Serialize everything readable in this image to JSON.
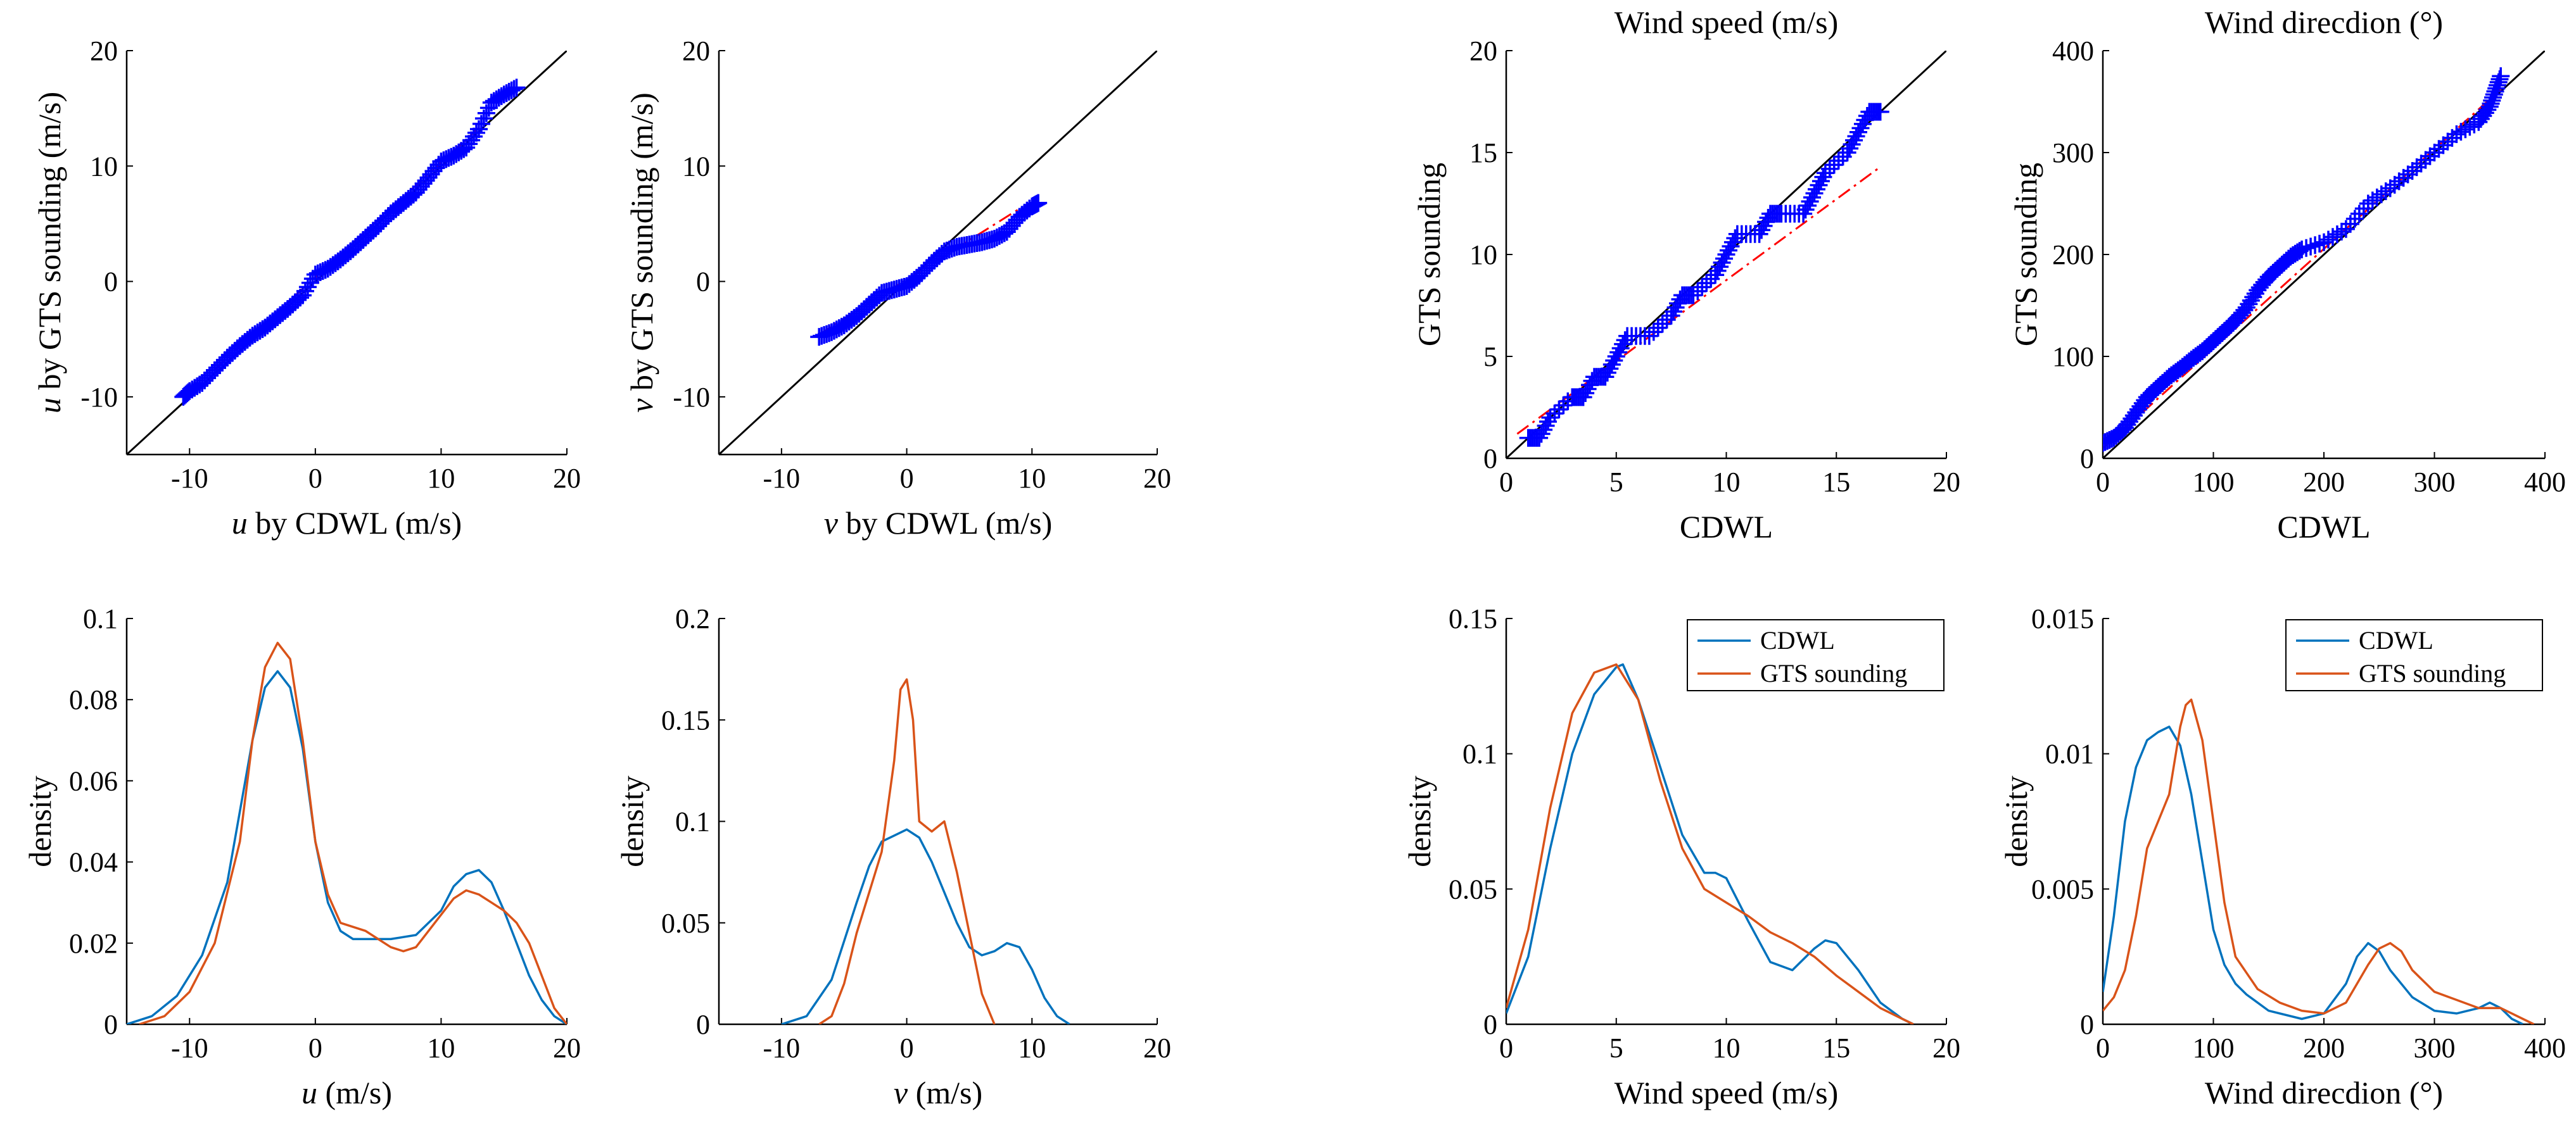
{
  "colors": {
    "cdwl": "#0072BD",
    "gts": "#D95319",
    "qq_marker": "#0000FF",
    "fit_line": "#FF0000",
    "identity_line": "#000000"
  },
  "chart_data": [
    {
      "id": "qq_u",
      "type": "scatter",
      "title": "",
      "xlabel_var": "u",
      "xlabel_rest": " by CDWL (m/s)",
      "ylabel_var": "u",
      "ylabel_rest": " by GTS sounding (m/s)",
      "xlim": [
        -15,
        20
      ],
      "ylim": [
        -15,
        20
      ],
      "xticks": [
        -10,
        0,
        10,
        20
      ],
      "yticks": [
        -10,
        0,
        10,
        20
      ],
      "identity_line": true,
      "fit_line": [
        [
          -8,
          -7.6
        ],
        [
          13,
          13.3
        ]
      ],
      "points": [
        [
          -10.5,
          -10
        ],
        [
          -10,
          -9.5
        ],
        [
          -9,
          -8.8
        ],
        [
          -8,
          -7.7
        ],
        [
          -7,
          -6.6
        ],
        [
          -6,
          -5.6
        ],
        [
          -5,
          -4.7
        ],
        [
          -4,
          -4
        ],
        [
          -3,
          -3.1
        ],
        [
          -2,
          -2.2
        ],
        [
          -1,
          -1.2
        ],
        [
          0,
          0.6
        ],
        [
          1,
          1.1
        ],
        [
          2,
          1.9
        ],
        [
          3,
          2.8
        ],
        [
          4,
          3.8
        ],
        [
          5,
          4.8
        ],
        [
          6,
          5.9
        ],
        [
          7,
          6.8
        ],
        [
          8,
          7.7
        ],
        [
          9,
          9
        ],
        [
          10,
          10.4
        ],
        [
          11,
          10.9
        ],
        [
          12,
          11.6
        ],
        [
          13,
          13.2
        ],
        [
          14,
          15.5
        ],
        [
          15,
          16.2
        ],
        [
          16,
          16.8
        ]
      ]
    },
    {
      "id": "qq_v",
      "type": "scatter",
      "title": "",
      "xlabel_var": "v",
      "xlabel_rest": " by CDWL (m/s)",
      "ylabel_var": "v",
      "ylabel_rest": " by GTS sounding (m/s)",
      "xlim": [
        -15,
        20
      ],
      "ylim": [
        -15,
        20
      ],
      "xticks": [
        -10,
        0,
        10,
        20
      ],
      "yticks": [
        -10,
        0,
        10,
        20
      ],
      "identity_line": true,
      "fit_line": [
        [
          -7,
          -4.6
        ],
        [
          9,
          6.3
        ]
      ],
      "points": [
        [
          -7,
          -4.8
        ],
        [
          -6,
          -4.4
        ],
        [
          -5,
          -3.8
        ],
        [
          -4,
          -3
        ],
        [
          -3,
          -2
        ],
        [
          -2,
          -1
        ],
        [
          -1,
          -0.7
        ],
        [
          0,
          -0.4
        ],
        [
          1,
          0.5
        ],
        [
          2,
          1.6
        ],
        [
          3,
          2.6
        ],
        [
          4,
          3
        ],
        [
          5,
          3.2
        ],
        [
          6,
          3.4
        ],
        [
          7,
          3.7
        ],
        [
          8,
          4.3
        ],
        [
          9,
          5.6
        ],
        [
          10,
          6.5
        ],
        [
          10.5,
          6.8
        ]
      ]
    },
    {
      "id": "qq_speed",
      "type": "scatter",
      "title": "Wind speed (m/s)",
      "xlabel": "CDWL",
      "ylabel": "GTS sounding",
      "xlim": [
        0,
        20
      ],
      "ylim": [
        0,
        20
      ],
      "xticks": [
        0,
        5,
        10,
        15,
        20
      ],
      "yticks": [
        0,
        5,
        10,
        15,
        20
      ],
      "identity_line": true,
      "fit_line": [
        [
          0.5,
          1.2
        ],
        [
          17,
          14.3
        ]
      ],
      "points": [
        [
          1,
          1
        ],
        [
          1.5,
          1
        ],
        [
          2,
          2
        ],
        [
          3,
          3
        ],
        [
          3.5,
          3
        ],
        [
          4,
          4
        ],
        [
          4.5,
          4
        ],
        [
          5,
          5
        ],
        [
          5.5,
          6
        ],
        [
          6.5,
          6
        ],
        [
          7.5,
          7
        ],
        [
          8,
          8
        ],
        [
          8.5,
          8
        ],
        [
          9.5,
          9
        ],
        [
          10,
          10
        ],
        [
          10.5,
          11
        ],
        [
          11.5,
          11
        ],
        [
          12,
          12
        ],
        [
          12.5,
          12
        ],
        [
          13.5,
          12
        ],
        [
          14,
          13
        ],
        [
          14.5,
          14
        ],
        [
          15.5,
          15
        ],
        [
          16,
          16
        ],
        [
          16.5,
          17
        ],
        [
          17,
          17
        ]
      ]
    },
    {
      "id": "qq_direction",
      "type": "scatter",
      "title": "Wind direcdion (°)",
      "xlabel": "CDWL",
      "ylabel": "GTS sounding",
      "xlim": [
        0,
        400
      ],
      "ylim": [
        0,
        400
      ],
      "xticks": [
        0,
        100,
        200,
        300,
        400
      ],
      "yticks": [
        0,
        100,
        200,
        300,
        400
      ],
      "identity_line": true,
      "fit_line": [
        [
          0,
          10
        ],
        [
          360,
          362
        ]
      ],
      "points": [
        [
          0,
          15
        ],
        [
          10,
          20
        ],
        [
          20,
          30
        ],
        [
          30,
          45
        ],
        [
          40,
          60
        ],
        [
          50,
          70
        ],
        [
          60,
          80
        ],
        [
          70,
          88
        ],
        [
          80,
          97
        ],
        [
          90,
          105
        ],
        [
          100,
          115
        ],
        [
          110,
          125
        ],
        [
          120,
          135
        ],
        [
          130,
          148
        ],
        [
          140,
          165
        ],
        [
          150,
          178
        ],
        [
          160,
          188
        ],
        [
          170,
          198
        ],
        [
          180,
          205
        ],
        [
          200,
          212
        ],
        [
          220,
          225
        ],
        [
          240,
          250
        ],
        [
          260,
          265
        ],
        [
          280,
          282
        ],
        [
          300,
          300
        ],
        [
          320,
          318
        ],
        [
          340,
          330
        ],
        [
          350,
          345
        ],
        [
          355,
          360
        ],
        [
          360,
          375
        ]
      ]
    },
    {
      "id": "kde_u",
      "type": "line",
      "title": "",
      "xlabel_var": "u",
      "xlabel_rest": "  (m/s)",
      "ylabel": "density",
      "xlim": [
        -15,
        20
      ],
      "ylim": [
        0,
        0.1
      ],
      "xticks": [
        -10,
        0,
        10,
        20
      ],
      "ytick_labels": [
        "0",
        "0.02",
        "0.04",
        "0.06",
        "0.08",
        "0.1"
      ],
      "yticks": [
        0,
        0.02,
        0.04,
        0.06,
        0.08,
        0.1
      ],
      "series": [
        {
          "name": "CDWL",
          "color": "#0072BD",
          "x": [
            -15,
            -13,
            -11,
            -9,
            -7,
            -5,
            -4,
            -3,
            -2,
            -1,
            0,
            1,
            2,
            3,
            4,
            6,
            8,
            10,
            11,
            12,
            13,
            14,
            15,
            16,
            17,
            18,
            19,
            20
          ],
          "y": [
            0,
            0.002,
            0.007,
            0.017,
            0.035,
            0.07,
            0.083,
            0.087,
            0.083,
            0.068,
            0.045,
            0.03,
            0.023,
            0.021,
            0.021,
            0.021,
            0.022,
            0.028,
            0.034,
            0.037,
            0.038,
            0.035,
            0.028,
            0.02,
            0.012,
            0.006,
            0.002,
            0
          ]
        },
        {
          "name": "GTS sounding",
          "color": "#D95319",
          "x": [
            -14,
            -12,
            -10,
            -8,
            -6,
            -5,
            -4,
            -3,
            -2,
            -1,
            0,
            1,
            2,
            4,
            6,
            7,
            8,
            10,
            11,
            12,
            13,
            14,
            15,
            16,
            17,
            18,
            19,
            20
          ],
          "y": [
            0,
            0.002,
            0.008,
            0.02,
            0.045,
            0.07,
            0.088,
            0.094,
            0.09,
            0.07,
            0.045,
            0.032,
            0.025,
            0.023,
            0.019,
            0.018,
            0.019,
            0.027,
            0.031,
            0.033,
            0.032,
            0.03,
            0.028,
            0.025,
            0.02,
            0.012,
            0.004,
            0
          ]
        }
      ]
    },
    {
      "id": "kde_v",
      "type": "line",
      "title": "",
      "xlabel_var": "v",
      "xlabel_rest": "  (m/s)",
      "ylabel": "density",
      "xlim": [
        -15,
        20
      ],
      "ylim": [
        0,
        0.2
      ],
      "xticks": [
        -10,
        0,
        10,
        20
      ],
      "ytick_labels": [
        "0",
        "0.05",
        "0.1",
        "0.15",
        "0.2"
      ],
      "yticks": [
        0,
        0.05,
        0.1,
        0.15,
        0.2
      ],
      "series": [
        {
          "name": "CDWL",
          "color": "#0072BD",
          "x": [
            -10,
            -8,
            -6,
            -4,
            -3,
            -2,
            -1,
            0,
            1,
            2,
            3,
            4,
            5,
            6,
            7,
            8,
            9,
            10,
            11,
            12,
            13
          ],
          "y": [
            0,
            0.004,
            0.022,
            0.06,
            0.078,
            0.09,
            0.093,
            0.096,
            0.092,
            0.08,
            0.065,
            0.05,
            0.038,
            0.034,
            0.036,
            0.04,
            0.038,
            0.027,
            0.013,
            0.004,
            0
          ]
        },
        {
          "name": "GTS sounding",
          "color": "#D95319",
          "x": [
            -7,
            -6,
            -5,
            -4,
            -3,
            -2,
            -1,
            -0.5,
            0,
            0.5,
            1,
            2,
            3,
            4,
            5,
            6,
            7
          ],
          "y": [
            0,
            0.004,
            0.02,
            0.045,
            0.065,
            0.085,
            0.13,
            0.165,
            0.17,
            0.15,
            0.1,
            0.095,
            0.1,
            0.075,
            0.045,
            0.015,
            0
          ]
        }
      ]
    },
    {
      "id": "kde_speed",
      "type": "line",
      "title": "",
      "xlabel": "Wind speed (m/s)",
      "ylabel": "density",
      "xlim": [
        0,
        20
      ],
      "ylim": [
        0,
        0.15
      ],
      "xticks": [
        0,
        5,
        10,
        15,
        20
      ],
      "ytick_labels": [
        "0",
        "0.05",
        "0.1",
        "0.15"
      ],
      "yticks": [
        0,
        0.05,
        0.1,
        0.15
      ],
      "legend": [
        "CDWL",
        "GTS sounding"
      ],
      "series": [
        {
          "name": "CDWL",
          "color": "#0072BD",
          "x": [
            0,
            1,
            2,
            3,
            4,
            5,
            5.3,
            6,
            7,
            8,
            9,
            9.5,
            10,
            11,
            12,
            13,
            14,
            14.5,
            15,
            16,
            17,
            18,
            18.5
          ],
          "y": [
            0.004,
            0.025,
            0.065,
            0.1,
            0.122,
            0.132,
            0.133,
            0.12,
            0.095,
            0.07,
            0.056,
            0.056,
            0.054,
            0.038,
            0.023,
            0.02,
            0.028,
            0.031,
            0.03,
            0.02,
            0.008,
            0.002,
            0
          ]
        },
        {
          "name": "GTS sounding",
          "color": "#D95319",
          "x": [
            0,
            1,
            2,
            3,
            4,
            5,
            6,
            7,
            8,
            9,
            10,
            11,
            12,
            13,
            14,
            15,
            16,
            17,
            18,
            18.5
          ],
          "y": [
            0.006,
            0.035,
            0.08,
            0.115,
            0.13,
            0.133,
            0.12,
            0.09,
            0.065,
            0.05,
            0.045,
            0.04,
            0.034,
            0.03,
            0.025,
            0.018,
            0.012,
            0.006,
            0.002,
            0
          ]
        }
      ]
    },
    {
      "id": "kde_direction",
      "type": "line",
      "title": "",
      "xlabel": "Wind direcdion (°)",
      "ylabel": "density",
      "xlim": [
        0,
        400
      ],
      "ylim": [
        0,
        0.015
      ],
      "xticks": [
        0,
        100,
        200,
        300,
        400
      ],
      "ytick_labels": [
        "0",
        "0.005",
        "0.01",
        "0.015"
      ],
      "yticks": [
        0,
        0.005,
        0.01,
        0.015
      ],
      "legend": [
        "CDWL",
        "GTS sounding"
      ],
      "series": [
        {
          "name": "CDWL",
          "color": "#0072BD",
          "x": [
            0,
            10,
            20,
            30,
            40,
            50,
            60,
            70,
            80,
            90,
            100,
            110,
            120,
            130,
            150,
            180,
            200,
            220,
            230,
            240,
            250,
            260,
            280,
            300,
            320,
            340,
            350,
            360,
            370,
            380
          ],
          "y": [
            0.0012,
            0.004,
            0.0075,
            0.0095,
            0.0105,
            0.0108,
            0.011,
            0.0103,
            0.0085,
            0.006,
            0.0035,
            0.0022,
            0.0015,
            0.0011,
            0.0005,
            0.0002,
            0.0004,
            0.0015,
            0.0025,
            0.003,
            0.0027,
            0.002,
            0.001,
            0.0005,
            0.0004,
            0.0006,
            0.0008,
            0.0006,
            0.0002,
            0
          ]
        },
        {
          "name": "GTS sounding",
          "color": "#D95319",
          "x": [
            0,
            10,
            20,
            30,
            40,
            50,
            60,
            70,
            75,
            80,
            90,
            100,
            110,
            120,
            140,
            160,
            180,
            200,
            220,
            240,
            250,
            260,
            270,
            280,
            300,
            320,
            340,
            360,
            370,
            380,
            390
          ],
          "y": [
            0.0005,
            0.001,
            0.002,
            0.004,
            0.0065,
            0.0075,
            0.0085,
            0.011,
            0.0118,
            0.012,
            0.0105,
            0.0075,
            0.0045,
            0.0025,
            0.0013,
            0.0008,
            0.0005,
            0.0004,
            0.0008,
            0.0022,
            0.0028,
            0.003,
            0.0027,
            0.002,
            0.0012,
            0.0009,
            0.0006,
            0.0006,
            0.0004,
            0.0002,
            0
          ]
        }
      ]
    }
  ]
}
